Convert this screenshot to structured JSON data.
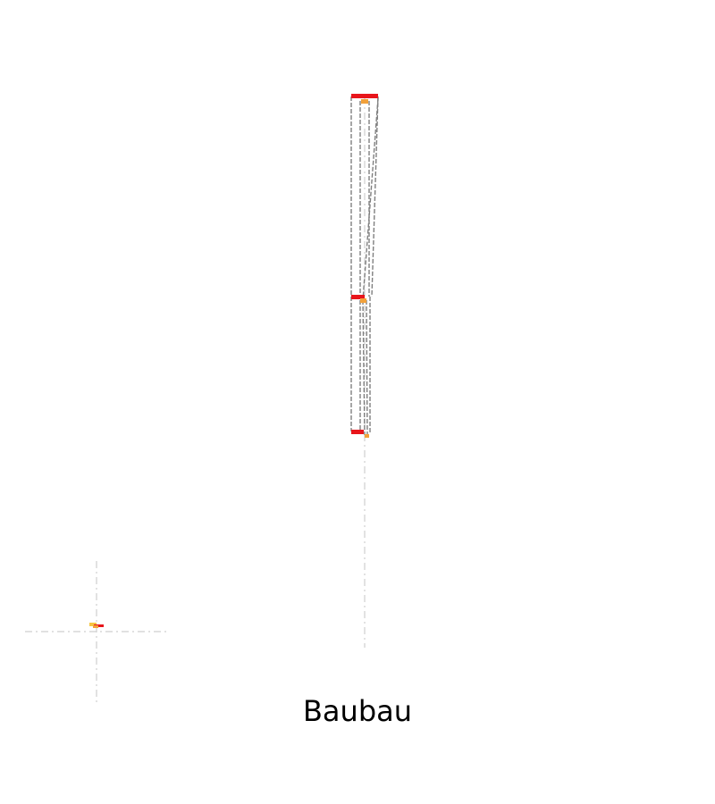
{
  "caption": "Baubau",
  "colors": {
    "marker_red": "#e8151b",
    "marker_orange": "#f2a13a",
    "marker_yellow": "#f5c542",
    "line_gray": "#7f7f7f",
    "guide_gray": "#cfcfcf"
  }
}
